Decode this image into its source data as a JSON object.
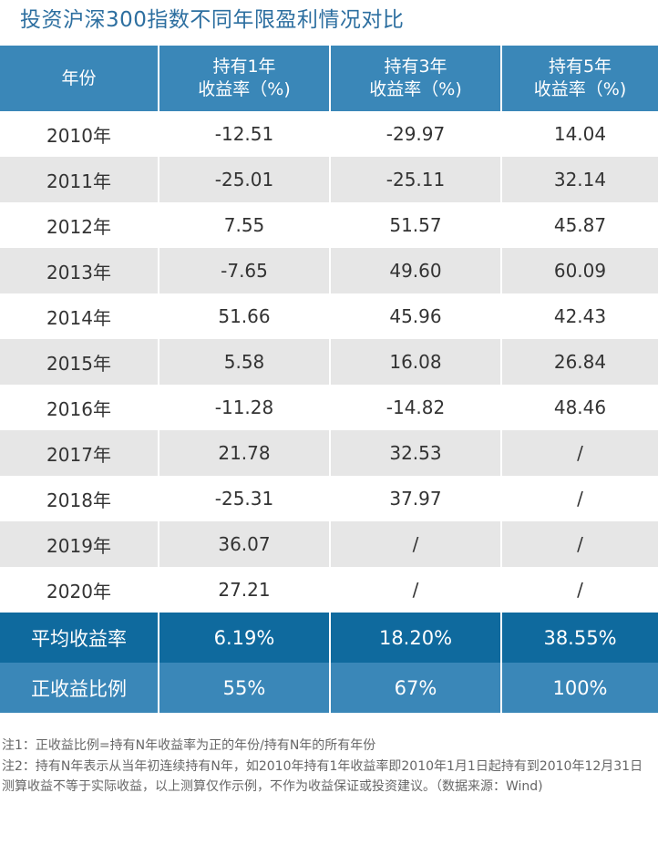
{
  "title": "投资沪深300指数不同年限盈利情况对比",
  "header": {
    "col1": "年份",
    "col2": [
      "持有1年",
      "收益率（%)"
    ],
    "col3": [
      "持有3年",
      "收益率（%)"
    ],
    "col4": [
      "持有5年",
      "收益率（%)"
    ]
  },
  "rows": [
    {
      "year": "2010年",
      "y1": "-12.51",
      "y3": "-29.97",
      "y5": "14.04"
    },
    {
      "year": "2011年",
      "y1": "-25.01",
      "y3": "-25.11",
      "y5": "32.14"
    },
    {
      "year": "2012年",
      "y1": "7.55",
      "y3": "51.57",
      "y5": "45.87"
    },
    {
      "year": "2013年",
      "y1": "-7.65",
      "y3": "49.60",
      "y5": "60.09"
    },
    {
      "year": "2014年",
      "y1": "51.66",
      "y3": "45.96",
      "y5": "42.43"
    },
    {
      "year": "2015年",
      "y1": "5.58",
      "y3": "16.08",
      "y5": "26.84"
    },
    {
      "year": "2016年",
      "y1": "-11.28",
      "y3": "-14.82",
      "y5": "48.46"
    },
    {
      "year": "2017年",
      "y1": "21.78",
      "y3": "32.53",
      "y5": "/"
    },
    {
      "year": "2018年",
      "y1": "-25.31",
      "y3": "37.97",
      "y5": "/"
    },
    {
      "year": "2019年",
      "y1": "36.07",
      "y3": "/",
      "y5": "/"
    },
    {
      "year": "2020年",
      "y1": "27.21",
      "y3": "/",
      "y5": "/"
    }
  ],
  "average": {
    "label": "平均收益率",
    "y1": "6.19%",
    "y3": "18.20%",
    "y5": "38.55%"
  },
  "positive": {
    "label": "正收益比例",
    "y1": "55%",
    "y3": "67%",
    "y5": "100%"
  },
  "notes": [
    "注1：正收益比例=持有N年收益率为正的年份/持有N年的所有年份",
    "注2：持有N年表示从当年初连续持有N年，如2010年持有1年收益率即2010年1月1日起持有到2010年12月31日",
    "测算收益不等于实际收益，以上测算仅作示例，不作为收益保证或投资建议。（数据来源：Wind)"
  ],
  "colors": {
    "title": "#2d6fa0",
    "header_bg": "#3a87b8",
    "average_bg": "#0f6a9e",
    "stripe_bg": "#e6e6e6"
  }
}
